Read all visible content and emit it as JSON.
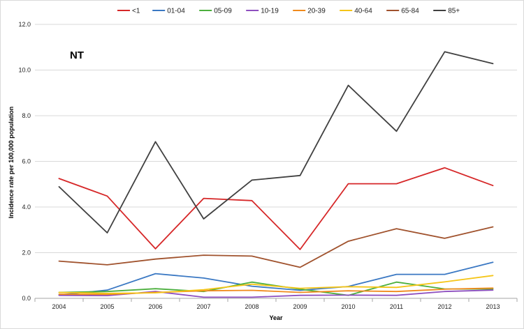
{
  "chart_data": {
    "type": "line",
    "title": "",
    "annotation": "NT",
    "xlabel": "Year",
    "ylabel": "Incidence rate per 100,000 population",
    "categories": [
      "2004",
      "2005",
      "2006",
      "2007",
      "2008",
      "2009",
      "2010",
      "2011",
      "2012",
      "2013"
    ],
    "ylim": [
      0,
      12
    ],
    "yticks": [
      "0.0",
      "2.0",
      "4.0",
      "6.0",
      "8.0",
      "10.0",
      "12.0"
    ],
    "yticks_values": [
      0,
      2,
      4,
      6,
      8,
      10,
      12
    ],
    "grid": "horizontal",
    "legend_position": "top",
    "series": [
      {
        "name": "<1",
        "color": "#d62728",
        "values": [
          5.25,
          4.48,
          2.17,
          4.38,
          4.28,
          2.14,
          5.02,
          5.02,
          5.72,
          4.94
        ]
      },
      {
        "name": "01-04",
        "color": "#3a78c3",
        "values": [
          0.15,
          0.36,
          1.08,
          0.89,
          0.53,
          0.35,
          0.52,
          1.05,
          1.05,
          1.58
        ]
      },
      {
        "name": "05-09",
        "color": "#4caf3e",
        "values": [
          0.26,
          0.3,
          0.42,
          0.3,
          0.71,
          0.4,
          0.13,
          0.71,
          0.41,
          0.41
        ]
      },
      {
        "name": "10-19",
        "color": "#8e4fbf",
        "values": [
          0.13,
          0.12,
          0.3,
          0.05,
          0.05,
          0.13,
          0.14,
          0.13,
          0.3,
          0.36
        ]
      },
      {
        "name": "20-39",
        "color": "#f08a1c",
        "values": [
          0.18,
          0.17,
          0.26,
          0.33,
          0.35,
          0.26,
          0.33,
          0.3,
          0.4,
          0.45
        ]
      },
      {
        "name": "40-64",
        "color": "#f5c518",
        "values": [
          0.26,
          0.22,
          0.24,
          0.38,
          0.62,
          0.44,
          0.51,
          0.48,
          0.72,
          1.0
        ]
      },
      {
        "name": "65-84",
        "color": "#a0522d",
        "values": [
          1.63,
          1.47,
          1.72,
          1.89,
          1.85,
          1.36,
          2.5,
          3.05,
          2.63,
          3.13
        ]
      },
      {
        "name": "85+",
        "color": "#404040",
        "values": [
          4.89,
          2.87,
          6.86,
          3.48,
          5.18,
          5.38,
          9.33,
          7.32,
          10.8,
          10.28
        ]
      }
    ]
  }
}
